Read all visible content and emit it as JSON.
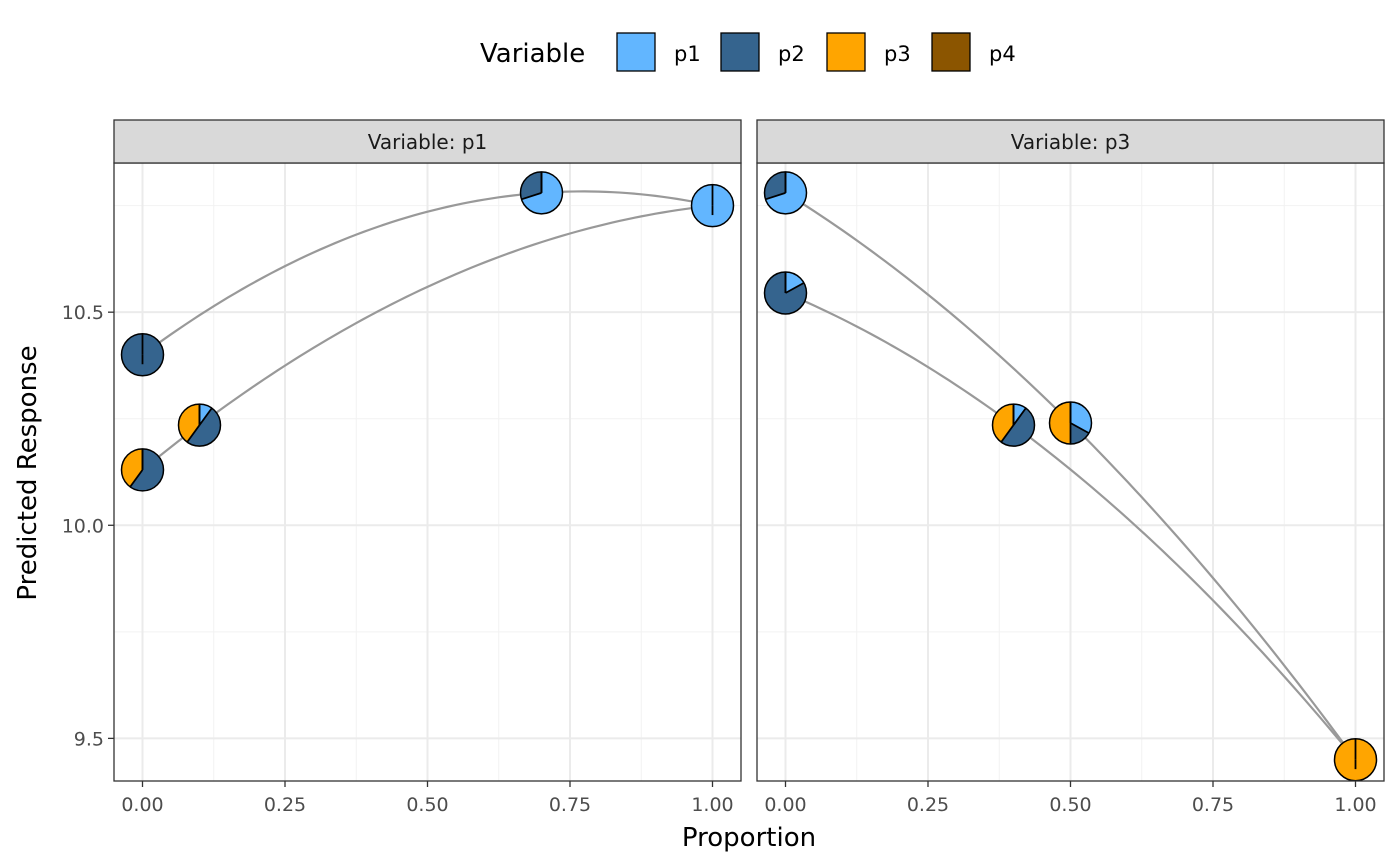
{
  "chart_data": {
    "type": "line",
    "xlabel": "Proportion",
    "ylabel": "Predicted Response",
    "xlim": [
      0,
      1
    ],
    "ylim": [
      9.4,
      10.85
    ],
    "x_ticks": [
      "0.00",
      "0.25",
      "0.50",
      "0.75",
      "1.00"
    ],
    "y_ticks": [
      "9.5",
      "10.0",
      "10.5"
    ],
    "legend": {
      "title": "Variable",
      "position": "top",
      "entries": [
        {
          "label": "p1",
          "color": "#62B6FF"
        },
        {
          "label": "p2",
          "color": "#35648E"
        },
        {
          "label": "p3",
          "color": "#FFA500"
        },
        {
          "label": "p4",
          "color": "#8B5500"
        }
      ]
    },
    "panels": [
      {
        "strip": "Variable: p1",
        "curves": [
          {
            "x": [
              0.0,
              0.7,
              1.0
            ],
            "y": [
              10.4,
              10.78,
              10.75
            ]
          },
          {
            "x": [
              0.0,
              0.1,
              1.0
            ],
            "y": [
              10.13,
              10.235,
              10.75
            ]
          }
        ],
        "points": [
          {
            "x": 0.0,
            "y": 10.4,
            "p1": 0.0,
            "p2": 1.0,
            "p3": 0.0,
            "p4": 0.0
          },
          {
            "x": 0.7,
            "y": 10.78,
            "p1": 0.7,
            "p2": 0.3,
            "p3": 0.0,
            "p4": 0.0
          },
          {
            "x": 1.0,
            "y": 10.75,
            "p1": 1.0,
            "p2": 0.0,
            "p3": 0.0,
            "p4": 0.0
          },
          {
            "x": 0.0,
            "y": 10.13,
            "p1": 0.0,
            "p2": 0.6,
            "p3": 0.4,
            "p4": 0.0
          },
          {
            "x": 0.1,
            "y": 10.235,
            "p1": 0.1,
            "p2": 0.5,
            "p3": 0.4,
            "p4": 0.0
          }
        ]
      },
      {
        "strip": "Variable: p3",
        "curves": [
          {
            "x": [
              0.0,
              0.5,
              1.0
            ],
            "y": [
              10.78,
              10.24,
              9.45
            ]
          },
          {
            "x": [
              0.0,
              0.4,
              1.0
            ],
            "y": [
              10.545,
              10.235,
              9.45
            ]
          }
        ],
        "points": [
          {
            "x": 0.0,
            "y": 10.78,
            "p1": 0.7,
            "p2": 0.3,
            "p3": 0.0,
            "p4": 0.0
          },
          {
            "x": 0.0,
            "y": 10.545,
            "p1": 0.17,
            "p2": 0.83,
            "p3": 0.0,
            "p4": 0.0
          },
          {
            "x": 0.4,
            "y": 10.235,
            "p1": 0.1,
            "p2": 0.5,
            "p3": 0.4,
            "p4": 0.0
          },
          {
            "x": 0.5,
            "y": 10.24,
            "p1": 0.33,
            "p2": 0.17,
            "p3": 0.5,
            "p4": 0.0
          },
          {
            "x": 1.0,
            "y": 9.45,
            "p1": 0.0,
            "p2": 0.0,
            "p3": 1.0,
            "p4": 0.0
          }
        ]
      }
    ]
  }
}
